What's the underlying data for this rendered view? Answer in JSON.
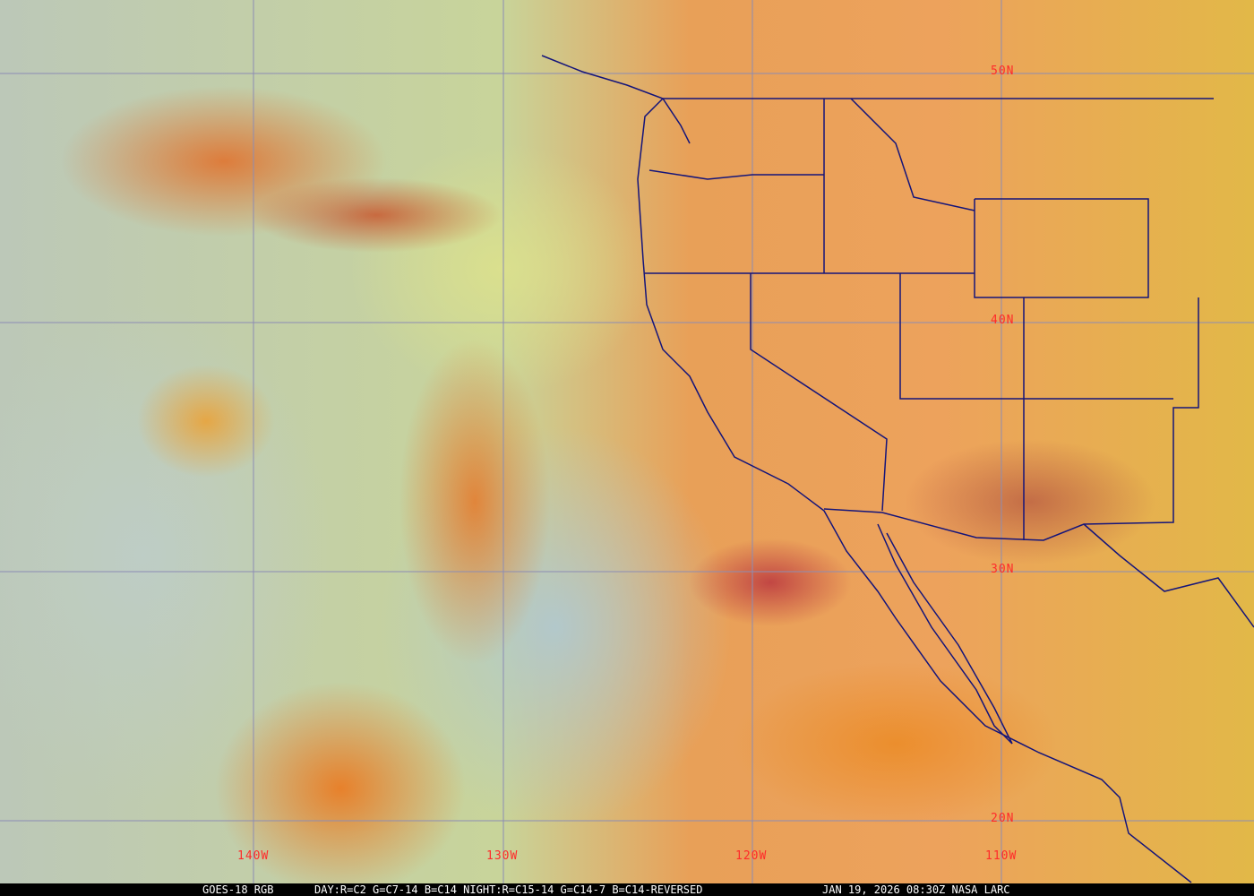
{
  "map": {
    "latitude_labels": [
      "50N",
      "40N",
      "30N",
      "20N"
    ],
    "longitude_labels": [
      "140W",
      "130W",
      "120W",
      "110W"
    ],
    "colors": {
      "grid": "#8c8cb4",
      "borders": "#14147a",
      "labels": "#ff2a2a"
    }
  },
  "caption": {
    "product": "GOES-18 RGB",
    "recipe": "DAY:R=C2 G=C7-14 B=C14 NIGHT:R=C15-14 G=C14-7 B=C14-REVERSED",
    "timestamp": "JAN 19, 2026 08:30Z NASA LARC"
  }
}
